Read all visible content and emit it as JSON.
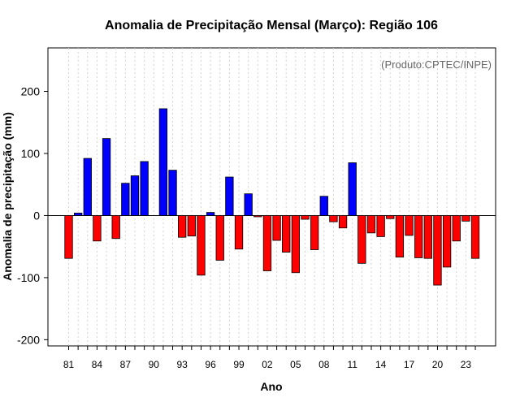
{
  "chart_data": {
    "type": "bar",
    "title": "Anomalia de Precipitação Mensal (Março): Região 106",
    "xlabel": "Ano",
    "ylabel": "Anomalia de precipitação (mm)",
    "credit": "(Produto:CPTEC/INPE)",
    "ylim": [
      -210,
      270
    ],
    "yticks": [
      -200,
      -100,
      0,
      100,
      200
    ],
    "xtick_labels": [
      "81",
      "84",
      "87",
      "90",
      "93",
      "96",
      "99",
      "02",
      "05",
      "08",
      "11",
      "14",
      "17",
      "20",
      "23"
    ],
    "grid": true,
    "categories": [
      "1981",
      "1982",
      "1983",
      "1984",
      "1985",
      "1986",
      "1987",
      "1988",
      "1989",
      "1990",
      "1991",
      "1992",
      "1993",
      "1994",
      "1995",
      "1996",
      "1997",
      "1998",
      "1999",
      "2000",
      "2001",
      "2002",
      "2003",
      "2004",
      "2005",
      "2006",
      "2007",
      "2008",
      "2009",
      "2010",
      "2011",
      "2012",
      "2013",
      "2014",
      "2015",
      "2016",
      "2017",
      "2018",
      "2019",
      "2020",
      "2021",
      "2022",
      "2023",
      "2024"
    ],
    "values": [
      -69,
      4,
      92,
      -41,
      124,
      -37,
      52,
      64,
      87,
      0,
      172,
      73,
      -35,
      -33,
      -96,
      5,
      -72,
      62,
      -54,
      35,
      -2,
      -89,
      -40,
      -59,
      -92,
      -6,
      -55,
      31,
      -10,
      -20,
      85,
      -77,
      -28,
      -34,
      -5,
      -67,
      -32,
      -68,
      -69,
      -112,
      -83,
      -41,
      -9,
      -69
    ],
    "colors": {
      "positive": "#0000ff",
      "negative": "#ff0000",
      "grid": "#d3d3d3",
      "axis": "#000000"
    }
  }
}
